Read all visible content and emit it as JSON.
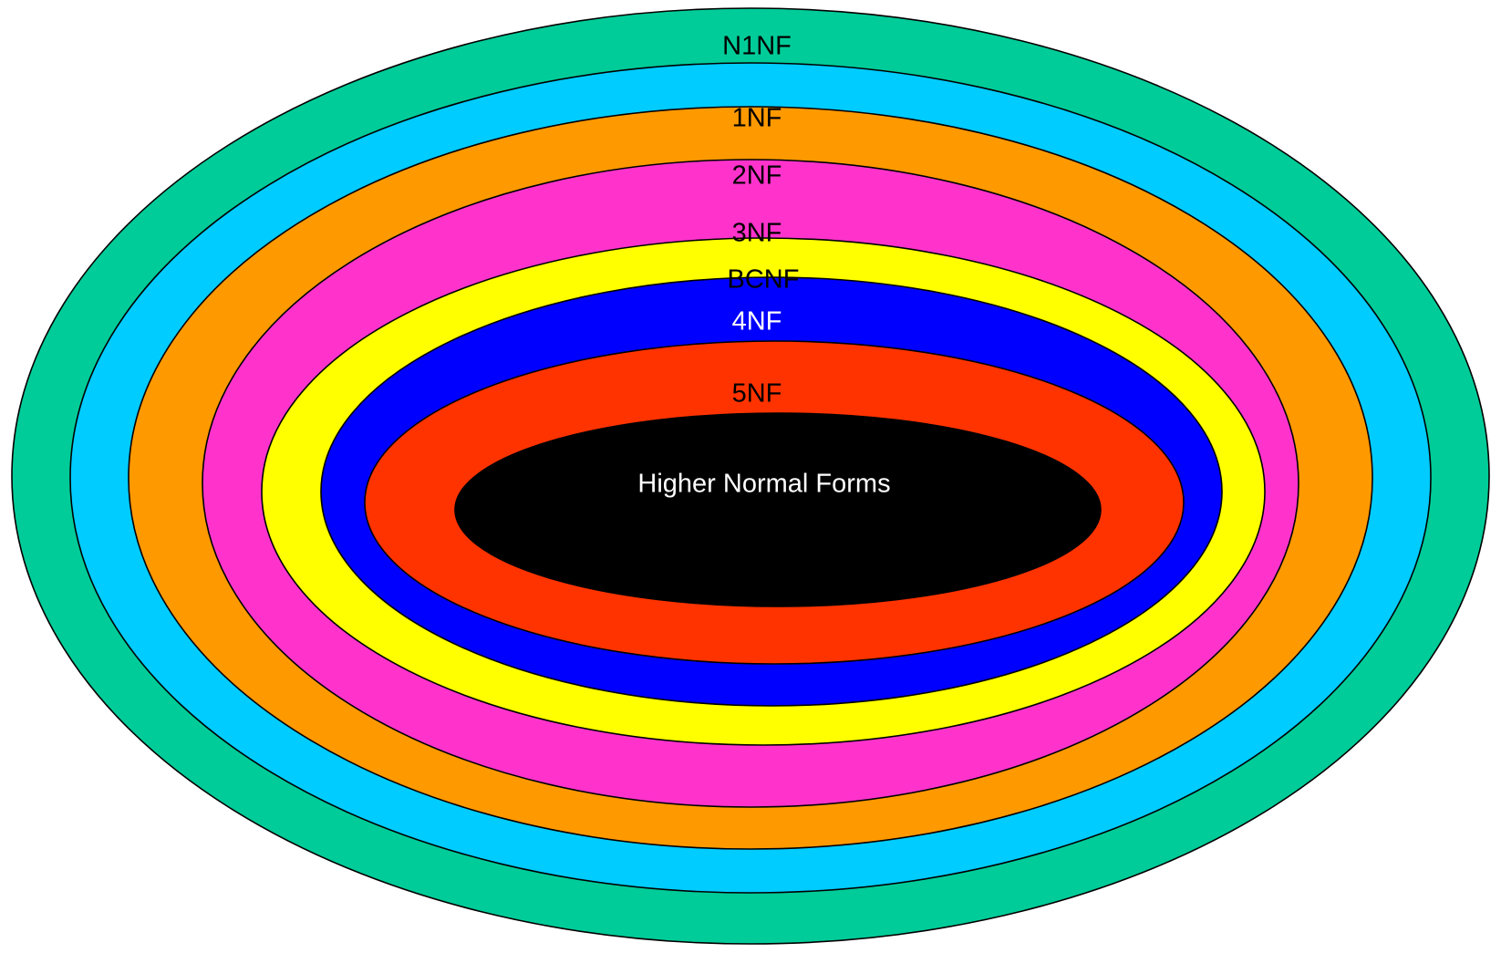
{
  "diagram": {
    "rings": [
      {
        "id": "n1nf",
        "label": "N1NF",
        "fill": "#00CC99",
        "label_color": "#000000"
      },
      {
        "id": "1nf",
        "label": "1NF",
        "fill": "#00CCFF",
        "label_color": "#000000"
      },
      {
        "id": "2nf",
        "label": "2NF",
        "fill": "#FF9900",
        "label_color": "#000000"
      },
      {
        "id": "3nf",
        "label": "3NF",
        "fill": "#FF33CC",
        "label_color": "#000000"
      },
      {
        "id": "bcnf",
        "label": "BCNF",
        "fill": "#FFFF00",
        "label_color": "#000000"
      },
      {
        "id": "4nf",
        "label": "4NF",
        "fill": "#0000FF",
        "label_color": "#FFFFFF"
      },
      {
        "id": "5nf",
        "label": "5NF",
        "fill": "#FF3300",
        "label_color": "#000000"
      },
      {
        "id": "higher",
        "label": "Higher Normal Forms",
        "fill": "#000000",
        "label_color": "#FFFFFF"
      }
    ],
    "outline_color": "#000000"
  }
}
